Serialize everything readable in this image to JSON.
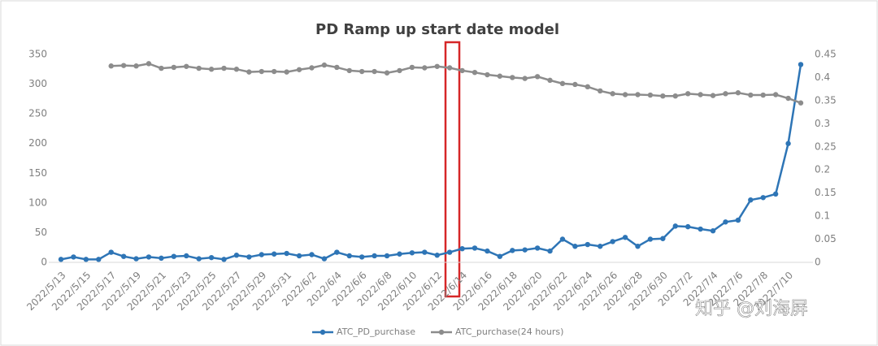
{
  "chart_data": {
    "type": "line",
    "title": "PD Ramp up start date model",
    "categories": [
      "2022/5/13",
      null,
      "2022/5/15",
      null,
      "2022/5/17",
      null,
      "2022/5/19",
      null,
      "2022/5/21",
      null,
      "2022/5/23",
      null,
      "2022/5/25",
      null,
      "2022/5/27",
      null,
      "2022/5/29",
      null,
      "2022/5/31",
      null,
      "2022/6/2",
      null,
      "2022/6/4",
      null,
      "2022/6/6",
      null,
      "2022/6/8",
      null,
      "2022/6/10",
      null,
      "2022/6/12",
      null,
      "2022/6/14",
      null,
      "2022/6/16",
      null,
      "2022/6/18",
      null,
      "2022/6/20",
      null,
      "2022/6/22",
      null,
      "2022/6/24",
      null,
      "2022/6/26",
      null,
      "2022/6/28",
      null,
      "2022/6/30",
      null,
      "2022/7/2",
      null,
      "2022/7/4",
      null,
      "2022/7/6",
      null,
      "2022/7/8",
      null,
      "2022/7/10",
      null
    ],
    "series": [
      {
        "name": "ATC_PD_purchase",
        "color": "#2e75b6",
        "values": [
          5,
          9,
          5,
          5,
          17,
          10,
          6,
          9,
          7,
          10,
          11,
          6,
          8,
          5,
          12,
          9,
          13,
          14,
          15,
          11,
          13,
          6,
          17,
          11,
          9,
          11,
          11,
          14,
          16,
          17,
          12,
          17,
          23,
          24,
          19,
          10,
          20,
          21,
          24,
          19,
          39,
          27,
          30,
          27,
          35,
          42,
          27,
          39,
          40,
          61,
          60,
          56,
          53,
          68,
          71,
          105,
          109,
          115,
          200,
          333
        ]
      },
      {
        "name": "ATC_purchase(24 hours)",
        "color": "#8c8c8c",
        "axis": "y2",
        "values": [
          null,
          null,
          null,
          null,
          0.425,
          0.426,
          0.425,
          0.43,
          0.42,
          0.422,
          0.424,
          0.42,
          0.418,
          0.42,
          0.418,
          0.412,
          0.413,
          0.413,
          0.412,
          0.417,
          0.421,
          0.427,
          0.422,
          0.415,
          0.413,
          0.413,
          0.41,
          0.415,
          0.422,
          0.421,
          0.424,
          0.421,
          0.415,
          0.411,
          0.406,
          0.403,
          0.4,
          0.398,
          0.402,
          0.394,
          0.387,
          0.385,
          0.38,
          0.371,
          0.365,
          0.363,
          0.363,
          0.362,
          0.36,
          0.36,
          0.365,
          0.363,
          0.361,
          0.365,
          0.367,
          0.362,
          0.362,
          0.363,
          0.355,
          0.345
        ]
      }
    ],
    "ylim": [
      0,
      350
    ],
    "yticks": [
      0,
      50,
      100,
      150,
      200,
      250,
      300,
      350
    ],
    "y2lim": [
      0,
      0.45
    ],
    "y2ticks": [
      0,
      0.05,
      0.1,
      0.15,
      0.2,
      0.25,
      0.3,
      0.35,
      0.4,
      0.45
    ],
    "legend": "bottom",
    "watermark": "知乎 @刘海屏"
  }
}
